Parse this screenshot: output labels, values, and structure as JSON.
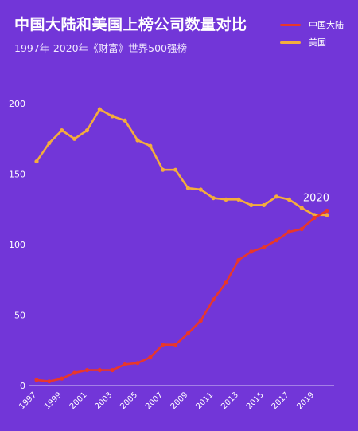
{
  "header": {
    "title": "中国大陆和美国上榜公司数量对比",
    "subtitle": "1997年-2020年《财富》世界500强榜"
  },
  "colors": {
    "background": "#7236d8",
    "china": "#e8372b",
    "usa": "#f4ad3c",
    "axis": "#d7c8f5",
    "tick_text": "#ffffff"
  },
  "chart_data": {
    "type": "line",
    "title": "中国大陆和美国上榜公司数量对比",
    "subtitle": "1997年-2020年《财富》世界500强榜",
    "x": [
      1997,
      1998,
      1999,
      2000,
      2001,
      2002,
      2003,
      2004,
      2005,
      2006,
      2007,
      2008,
      2009,
      2010,
      2011,
      2012,
      2013,
      2014,
      2015,
      2016,
      2017,
      2018,
      2019,
      2020
    ],
    "x_tick_labels": [
      "1997",
      "1999",
      "2001",
      "2003",
      "2005",
      "2007",
      "2009",
      "2011",
      "2013",
      "2015",
      "2017",
      "2019"
    ],
    "y_tick_labels": [
      "0",
      "50",
      "100",
      "150",
      "200"
    ],
    "ylim": [
      0,
      200
    ],
    "legend_position": "top-right",
    "annotation": "2020",
    "series": [
      {
        "name": "中国大陆",
        "values": [
          4,
          3,
          5,
          9,
          11,
          11,
          11,
          15,
          16,
          20,
          29,
          29,
          37,
          46,
          61,
          73,
          89,
          95,
          98,
          103,
          109,
          111,
          119,
          124
        ]
      },
      {
        "name": "美国",
        "values": [
          159,
          172,
          181,
          175,
          181,
          196,
          191,
          188,
          174,
          170,
          153,
          153,
          140,
          139,
          133,
          132,
          132,
          128,
          128,
          134,
          132,
          126,
          121,
          121
        ]
      }
    ]
  }
}
